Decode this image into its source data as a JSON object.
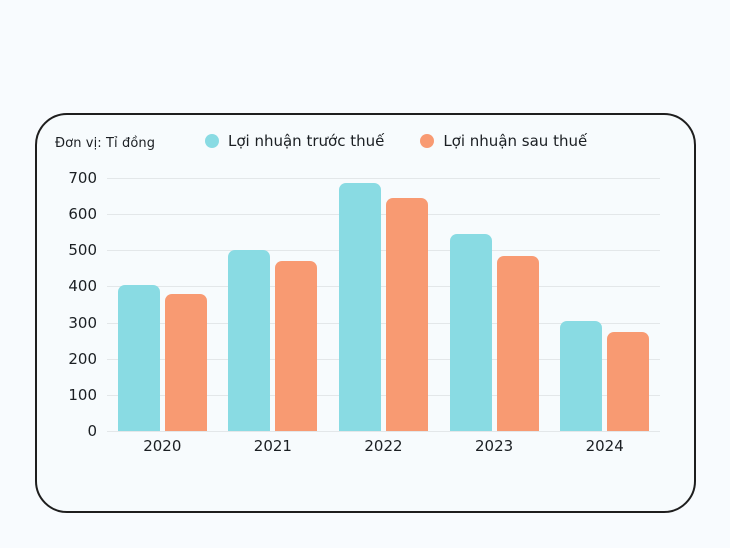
{
  "page": {
    "background_color": "#F8FBFE"
  },
  "card": {
    "border_color": "#1E1E1E",
    "background_color": "#F7FBFD"
  },
  "chart_data": {
    "type": "bar",
    "title": "",
    "unit_label": "Đơn vị: Tỉ đồng",
    "categories": [
      "2020",
      "2021",
      "2022",
      "2023",
      "2024"
    ],
    "series": [
      {
        "name": "Lợi nhuận trước thuế",
        "color": "#89DBE3",
        "values": [
          405,
          500,
          685,
          545,
          305
        ]
      },
      {
        "name": "Lợi nhuận sau thuế",
        "color": "#F89A72",
        "values": [
          380,
          470,
          645,
          485,
          275
        ]
      }
    ],
    "xlabel": "",
    "ylabel": "",
    "ylim": [
      0,
      700
    ],
    "ytick_step": 100,
    "yticks": [
      0,
      100,
      200,
      300,
      400,
      500,
      600,
      700
    ],
    "grid": true,
    "legend_position": "top",
    "gridline_color": "#E3E7E9",
    "text_color": "#1B1F23"
  }
}
